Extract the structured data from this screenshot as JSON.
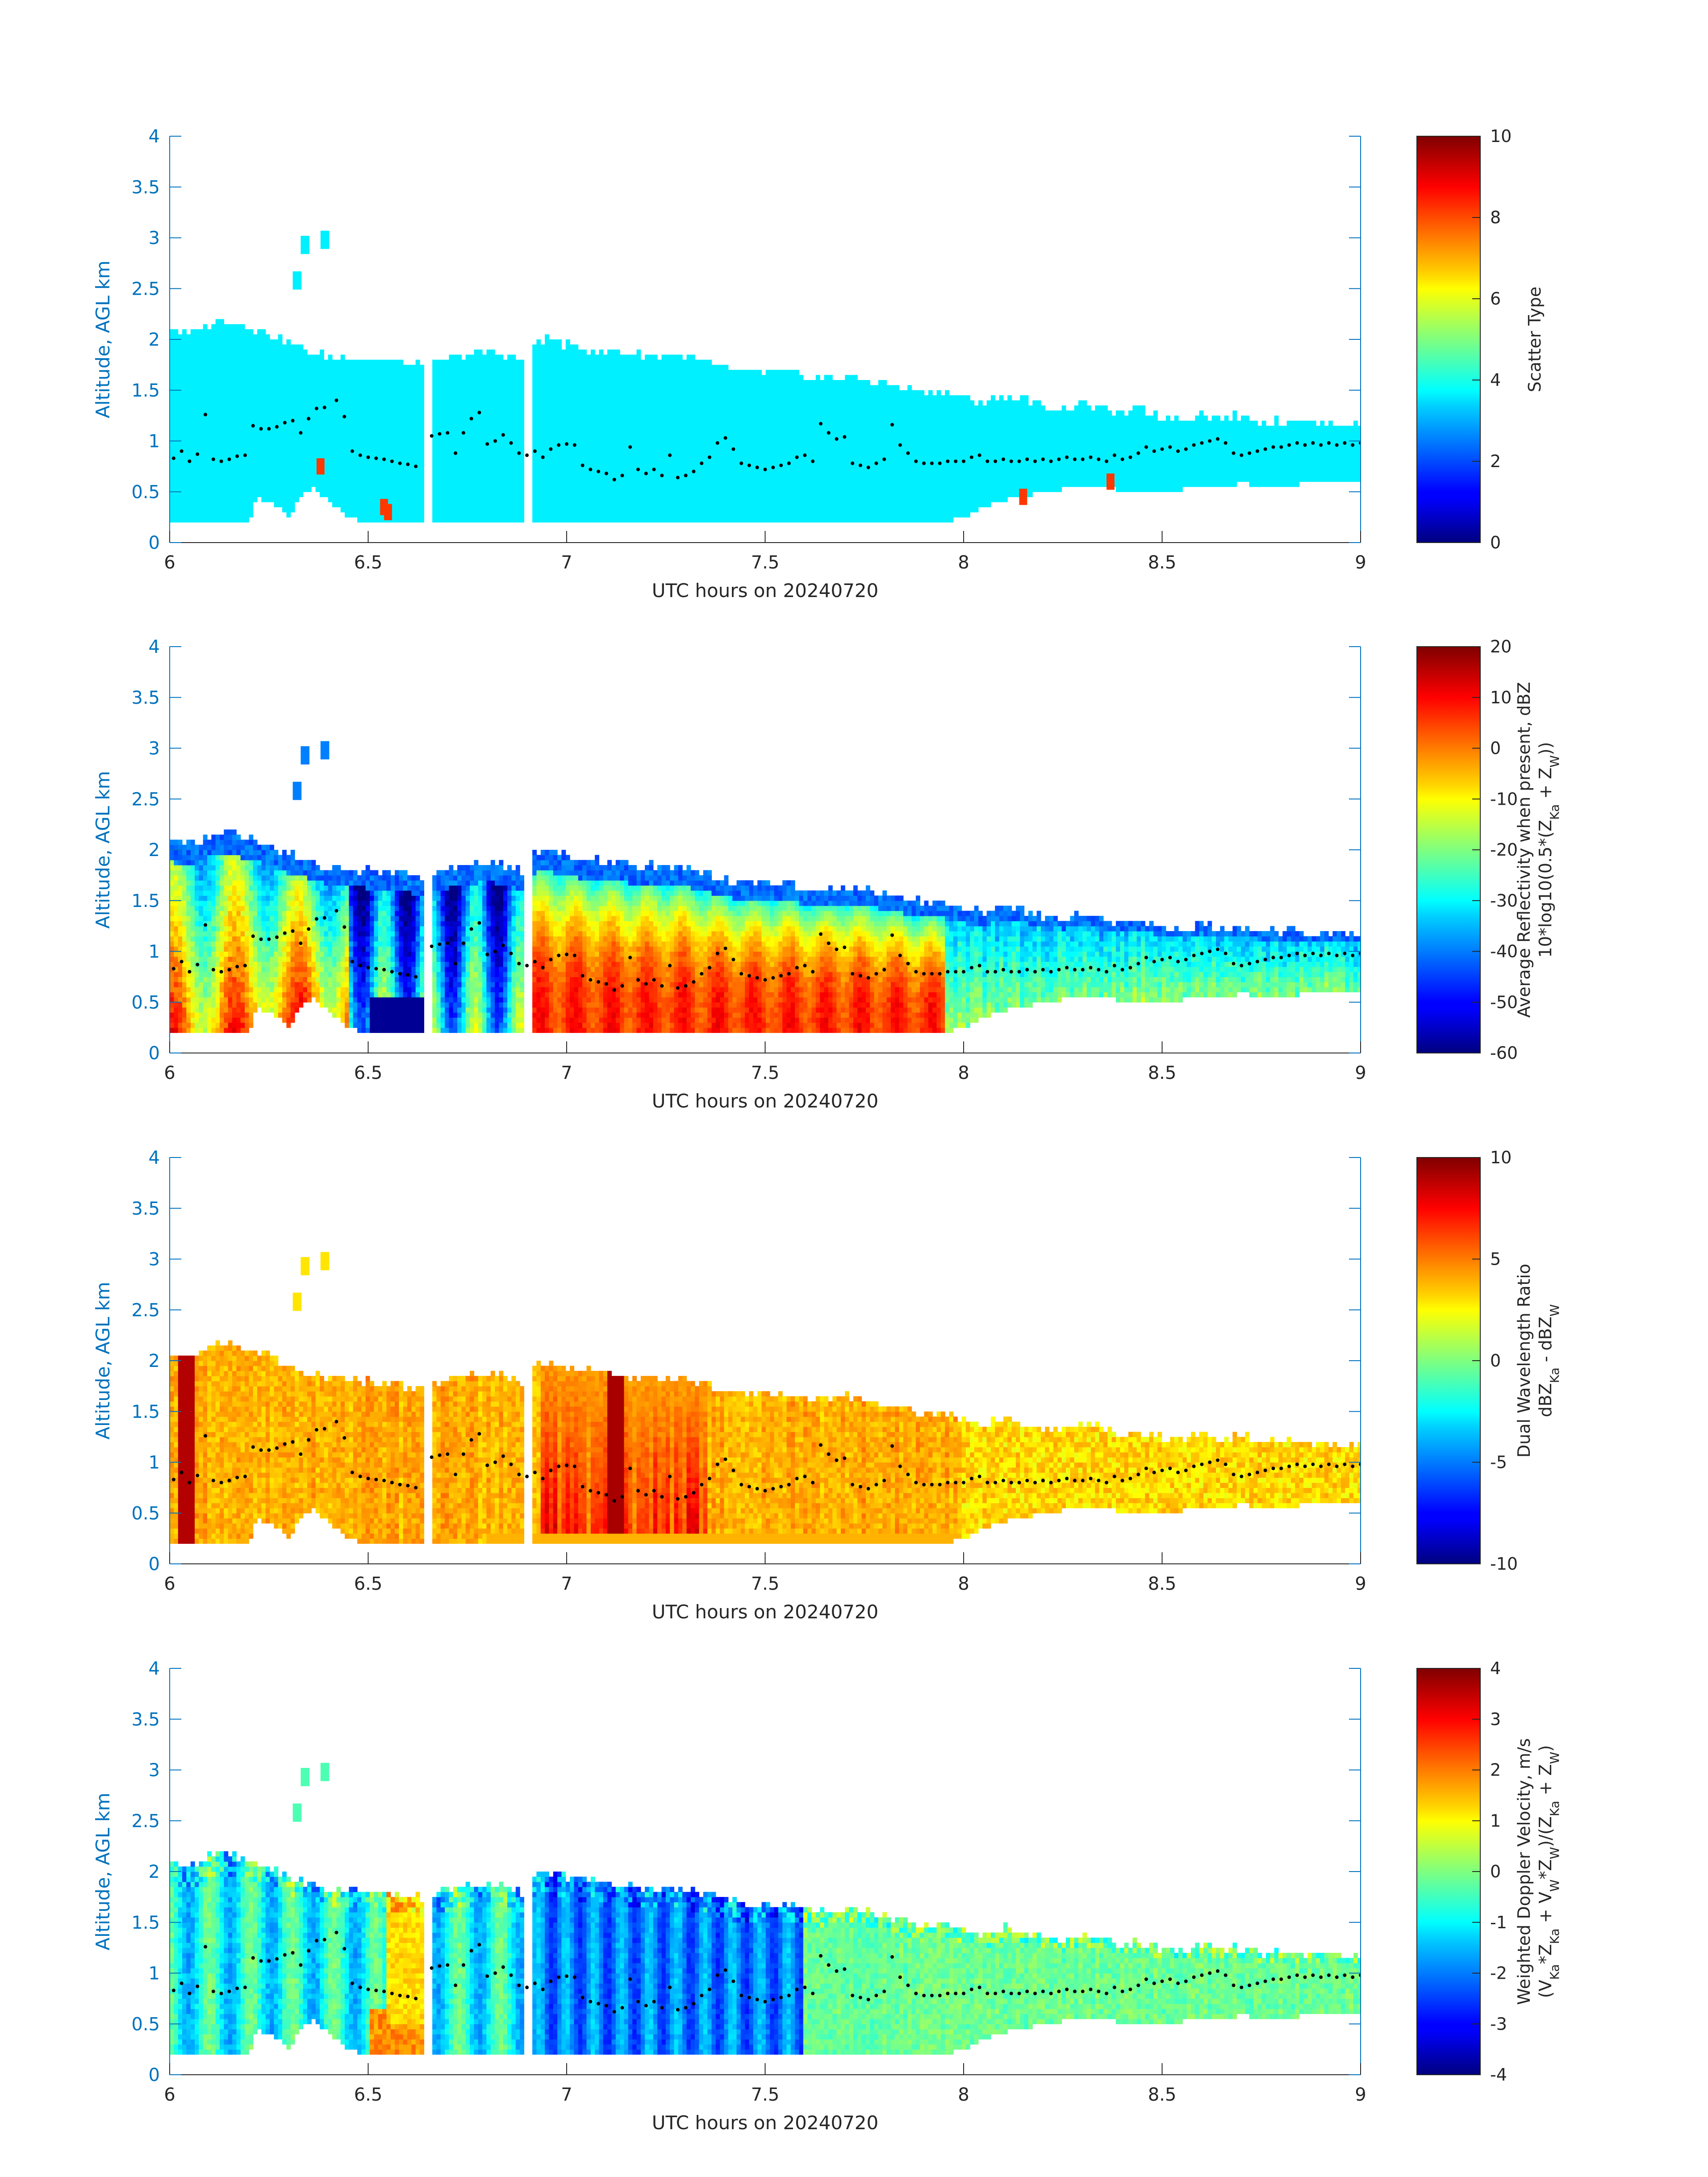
{
  "figure": {
    "xlabel": "UTC hours on 20240720",
    "ylabel": "Altitude, AGL km",
    "xlim": [
      6,
      9
    ],
    "ylim": [
      0,
      4
    ],
    "xticks": [
      "6",
      "6.5",
      "7",
      "7.5",
      "8",
      "8.5",
      "9"
    ],
    "yticks": [
      "0",
      "0.5",
      "1",
      "1.5",
      "2",
      "2.5",
      "3",
      "3.5",
      "4"
    ],
    "axis_color": "#0072bd"
  },
  "chart_data": [
    {
      "type": "heatmap",
      "panel": 1,
      "colorbar_label": [
        "Scatter Type"
      ],
      "clim": [
        0,
        10
      ],
      "colorbar_ticks": [
        "0",
        "2",
        "4",
        "6",
        "8",
        "10"
      ],
      "colormap": "jet",
      "xlim": [
        6,
        9
      ],
      "ylim": [
        0,
        4
      ],
      "description_values": {
        "cloud_value": 3.6,
        "spot_value": 8.2,
        "spots": [
          [
            6.37,
            0.75
          ],
          [
            6.53,
            0.35
          ],
          [
            6.54,
            0.3
          ],
          [
            8.14,
            0.45
          ],
          [
            8.36,
            0.6
          ]
        ]
      }
    },
    {
      "type": "heatmap",
      "panel": 2,
      "colorbar_label": [
        "Average Reflectivity when present, dBZ",
        "10*log10(0.5*(Z_Ka + Z_W))"
      ],
      "clim": [
        -60,
        20
      ],
      "colorbar_ticks": [
        "-60",
        "-50",
        "-40",
        "-30",
        "-20",
        "-10",
        "0",
        "10",
        "20"
      ],
      "colormap": "jet",
      "xlim": [
        6,
        9
      ],
      "ylim": [
        0,
        4
      ]
    },
    {
      "type": "heatmap",
      "panel": 3,
      "colorbar_label": [
        "Dual Wavelength Ratio",
        "dBZ_Ka - dBZ_W"
      ],
      "clim": [
        -10,
        10
      ],
      "colorbar_ticks": [
        "-10",
        "-5",
        "0",
        "5",
        "10"
      ],
      "colormap": "jet",
      "xlim": [
        6,
        9
      ],
      "ylim": [
        0,
        4
      ]
    },
    {
      "type": "heatmap",
      "panel": 4,
      "colorbar_label": [
        "Weighted Doppler Velocity, m/s",
        "(V_Ka*Z_Ka + V_W*Z_W)/(Z_Ka + Z_W)"
      ],
      "clim": [
        -4,
        4
      ],
      "colorbar_ticks": [
        "-4",
        "-3",
        "-2",
        "-1",
        "0",
        "1",
        "2",
        "3",
        "4"
      ],
      "colormap": "jet",
      "xlim": [
        6,
        9
      ],
      "ylim": [
        0,
        4
      ]
    }
  ],
  "cloud_top_km": [
    [
      6.0,
      2.08
    ],
    [
      6.05,
      2.02
    ],
    [
      6.1,
      2.13
    ],
    [
      6.15,
      2.15
    ],
    [
      6.2,
      2.1
    ],
    [
      6.25,
      2.02
    ],
    [
      6.3,
      1.93
    ],
    [
      6.35,
      1.85
    ],
    [
      6.4,
      1.8
    ],
    [
      6.45,
      1.79
    ],
    [
      6.5,
      1.78
    ],
    [
      6.55,
      1.76
    ],
    [
      6.6,
      1.73
    ],
    [
      6.65,
      1.72
    ],
    [
      6.7,
      1.78
    ],
    [
      6.75,
      1.82
    ],
    [
      6.8,
      1.85
    ],
    [
      6.85,
      1.82
    ],
    [
      6.9,
      1.75
    ],
    [
      6.92,
      1.95
    ],
    [
      6.95,
      1.97
    ],
    [
      7.0,
      1.92
    ],
    [
      7.05,
      1.88
    ],
    [
      7.1,
      1.86
    ],
    [
      7.15,
      1.84
    ],
    [
      7.2,
      1.82
    ],
    [
      7.25,
      1.82
    ],
    [
      7.3,
      1.8
    ],
    [
      7.35,
      1.75
    ],
    [
      7.4,
      1.68
    ],
    [
      7.45,
      1.66
    ],
    [
      7.5,
      1.66
    ],
    [
      7.55,
      1.65
    ],
    [
      7.6,
      1.6
    ],
    [
      7.65,
      1.58
    ],
    [
      7.7,
      1.62
    ],
    [
      7.75,
      1.58
    ],
    [
      7.8,
      1.55
    ],
    [
      7.85,
      1.5
    ],
    [
      7.9,
      1.47
    ],
    [
      7.95,
      1.45
    ],
    [
      8.0,
      1.4
    ],
    [
      8.05,
      1.35
    ],
    [
      8.1,
      1.42
    ],
    [
      8.15,
      1.38
    ],
    [
      8.2,
      1.33
    ],
    [
      8.25,
      1.3
    ],
    [
      8.3,
      1.35
    ],
    [
      8.35,
      1.3
    ],
    [
      8.4,
      1.25
    ],
    [
      8.45,
      1.28
    ],
    [
      8.5,
      1.22
    ],
    [
      8.55,
      1.2
    ],
    [
      8.6,
      1.25
    ],
    [
      8.65,
      1.2
    ],
    [
      8.7,
      1.23
    ],
    [
      8.75,
      1.18
    ],
    [
      8.8,
      1.16
    ],
    [
      8.85,
      1.18
    ],
    [
      8.9,
      1.15
    ],
    [
      8.95,
      1.15
    ],
    [
      9.0,
      1.15
    ]
  ],
  "cloud_base_km": [
    [
      6.0,
      0.2
    ],
    [
      6.2,
      0.2
    ],
    [
      6.22,
      0.45
    ],
    [
      6.28,
      0.35
    ],
    [
      6.3,
      0.25
    ],
    [
      6.33,
      0.45
    ],
    [
      6.36,
      0.55
    ],
    [
      6.4,
      0.42
    ],
    [
      6.45,
      0.25
    ],
    [
      6.5,
      0.2
    ],
    [
      6.9,
      0.2
    ],
    [
      7.95,
      0.2
    ],
    [
      8.0,
      0.25
    ],
    [
      8.05,
      0.35
    ],
    [
      8.1,
      0.42
    ],
    [
      8.2,
      0.5
    ],
    [
      8.3,
      0.55
    ],
    [
      8.4,
      0.52
    ],
    [
      8.5,
      0.5
    ],
    [
      8.6,
      0.55
    ],
    [
      8.7,
      0.58
    ],
    [
      8.8,
      0.55
    ],
    [
      8.9,
      0.6
    ],
    [
      9.0,
      0.58
    ]
  ],
  "isolated_echo_km": [
    [
      6.31,
      2.55
    ],
    [
      6.33,
      2.9
    ],
    [
      6.38,
      2.95
    ]
  ],
  "dots_km": [
    [
      6.01,
      0.83
    ],
    [
      6.03,
      0.9
    ],
    [
      6.05,
      0.8
    ],
    [
      6.07,
      0.87
    ],
    [
      6.09,
      1.26
    ],
    [
      6.11,
      0.82
    ],
    [
      6.13,
      0.8
    ],
    [
      6.15,
      0.82
    ],
    [
      6.17,
      0.85
    ],
    [
      6.19,
      0.86
    ],
    [
      6.21,
      1.15
    ],
    [
      6.23,
      1.12
    ],
    [
      6.25,
      1.12
    ],
    [
      6.27,
      1.14
    ],
    [
      6.29,
      1.18
    ],
    [
      6.31,
      1.2
    ],
    [
      6.33,
      1.08
    ],
    [
      6.35,
      1.22
    ],
    [
      6.37,
      1.32
    ],
    [
      6.39,
      1.33
    ],
    [
      6.42,
      1.4
    ],
    [
      6.44,
      1.24
    ],
    [
      6.46,
      0.9
    ],
    [
      6.48,
      0.86
    ],
    [
      6.5,
      0.84
    ],
    [
      6.52,
      0.83
    ],
    [
      6.54,
      0.82
    ],
    [
      6.56,
      0.8
    ],
    [
      6.58,
      0.78
    ],
    [
      6.6,
      0.77
    ],
    [
      6.62,
      0.75
    ],
    [
      6.66,
      1.05
    ],
    [
      6.68,
      1.07
    ],
    [
      6.7,
      1.08
    ],
    [
      6.72,
      0.88
    ],
    [
      6.74,
      1.08
    ],
    [
      6.76,
      1.22
    ],
    [
      6.78,
      1.28
    ],
    [
      6.8,
      0.97
    ],
    [
      6.82,
      1.0
    ],
    [
      6.84,
      1.06
    ],
    [
      6.86,
      0.98
    ],
    [
      6.88,
      0.88
    ],
    [
      6.9,
      0.86
    ],
    [
      6.92,
      0.9
    ],
    [
      6.94,
      0.84
    ],
    [
      6.96,
      0.92
    ],
    [
      6.98,
      0.96
    ],
    [
      7.0,
      0.97
    ],
    [
      7.02,
      0.96
    ],
    [
      7.04,
      0.76
    ],
    [
      7.06,
      0.72
    ],
    [
      7.08,
      0.7
    ],
    [
      7.1,
      0.68
    ],
    [
      7.12,
      0.62
    ],
    [
      7.14,
      0.66
    ],
    [
      7.16,
      0.94
    ],
    [
      7.18,
      0.72
    ],
    [
      7.2,
      0.68
    ],
    [
      7.22,
      0.72
    ],
    [
      7.24,
      0.66
    ],
    [
      7.26,
      0.86
    ],
    [
      7.28,
      0.64
    ],
    [
      7.3,
      0.66
    ],
    [
      7.32,
      0.7
    ],
    [
      7.34,
      0.78
    ],
    [
      7.36,
      0.84
    ],
    [
      7.38,
      0.98
    ],
    [
      7.4,
      1.03
    ],
    [
      7.42,
      0.92
    ],
    [
      7.44,
      0.78
    ],
    [
      7.46,
      0.76
    ],
    [
      7.48,
      0.74
    ],
    [
      7.5,
      0.72
    ],
    [
      7.52,
      0.74
    ],
    [
      7.54,
      0.76
    ],
    [
      7.56,
      0.78
    ],
    [
      7.58,
      0.84
    ],
    [
      7.6,
      0.86
    ],
    [
      7.62,
      0.8
    ],
    [
      7.64,
      1.17
    ],
    [
      7.66,
      1.08
    ],
    [
      7.68,
      1.02
    ],
    [
      7.7,
      1.04
    ],
    [
      7.72,
      0.78
    ],
    [
      7.74,
      0.76
    ],
    [
      7.76,
      0.74
    ],
    [
      7.78,
      0.78
    ],
    [
      7.8,
      0.82
    ],
    [
      7.82,
      1.16
    ],
    [
      7.84,
      0.96
    ],
    [
      7.86,
      0.88
    ],
    [
      7.88,
      0.8
    ],
    [
      7.9,
      0.78
    ],
    [
      7.92,
      0.78
    ],
    [
      7.94,
      0.78
    ],
    [
      7.96,
      0.8
    ],
    [
      7.98,
      0.8
    ],
    [
      8.0,
      0.8
    ],
    [
      8.02,
      0.84
    ],
    [
      8.04,
      0.86
    ],
    [
      8.06,
      0.8
    ],
    [
      8.08,
      0.8
    ],
    [
      8.1,
      0.82
    ],
    [
      8.12,
      0.8
    ],
    [
      8.14,
      0.8
    ],
    [
      8.16,
      0.82
    ],
    [
      8.18,
      0.8
    ],
    [
      8.2,
      0.82
    ],
    [
      8.22,
      0.8
    ],
    [
      8.24,
      0.82
    ],
    [
      8.26,
      0.84
    ],
    [
      8.28,
      0.82
    ],
    [
      8.3,
      0.82
    ],
    [
      8.32,
      0.84
    ],
    [
      8.34,
      0.82
    ],
    [
      8.36,
      0.8
    ],
    [
      8.38,
      0.86
    ],
    [
      8.4,
      0.82
    ],
    [
      8.42,
      0.84
    ],
    [
      8.44,
      0.88
    ],
    [
      8.46,
      0.94
    ],
    [
      8.48,
      0.9
    ],
    [
      8.5,
      0.92
    ],
    [
      8.52,
      0.94
    ],
    [
      8.54,
      0.9
    ],
    [
      8.56,
      0.92
    ],
    [
      8.58,
      0.96
    ],
    [
      8.6,
      0.98
    ],
    [
      8.62,
      1.0
    ],
    [
      8.64,
      1.02
    ],
    [
      8.66,
      0.98
    ],
    [
      8.68,
      0.88
    ],
    [
      8.7,
      0.86
    ],
    [
      8.72,
      0.88
    ],
    [
      8.74,
      0.9
    ],
    [
      8.76,
      0.92
    ],
    [
      8.78,
      0.94
    ],
    [
      8.8,
      0.94
    ],
    [
      8.82,
      0.96
    ],
    [
      8.84,
      0.98
    ],
    [
      8.86,
      0.96
    ],
    [
      8.88,
      0.98
    ],
    [
      8.9,
      0.96
    ],
    [
      8.92,
      0.98
    ],
    [
      8.94,
      0.96
    ],
    [
      8.96,
      0.98
    ],
    [
      8.98,
      0.96
    ],
    [
      9.0,
      0.98
    ]
  ]
}
